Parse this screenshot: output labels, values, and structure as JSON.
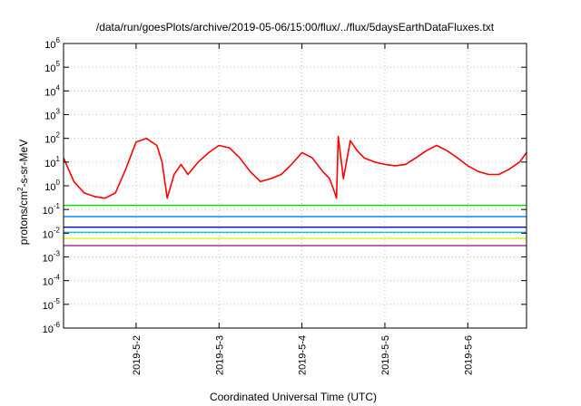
{
  "chart_data": {
    "type": "line",
    "title": "/data/run/goesPlots/archive/2019-05-06/15:00/flux/../flux/5daysEarthDataFluxes.txt",
    "xlabel": "Coordinated Universal Time (UTC)",
    "ylabel": {
      "prefix": "protons/cm",
      "superscript": "2",
      "suffix": "-s-sr-MeV"
    },
    "yscale": "log",
    "ylim": [
      1e-06,
      1000000.0
    ],
    "yticks": [
      {
        "base": "10",
        "exp": "-6",
        "value": 1e-06
      },
      {
        "base": "10",
        "exp": "-5",
        "value": 1e-05
      },
      {
        "base": "10",
        "exp": "-4",
        "value": 0.0001
      },
      {
        "base": "10",
        "exp": "-3",
        "value": 0.001
      },
      {
        "base": "10",
        "exp": "-2",
        "value": 0.01
      },
      {
        "base": "10",
        "exp": "-1",
        "value": 0.1
      },
      {
        "base": "10",
        "exp": "0",
        "value": 1
      },
      {
        "base": "10",
        "exp": "1",
        "value": 10
      },
      {
        "base": "10",
        "exp": "2",
        "value": 100
      },
      {
        "base": "10",
        "exp": "3",
        "value": 1000
      },
      {
        "base": "10",
        "exp": "4",
        "value": 10000
      },
      {
        "base": "10",
        "exp": "5",
        "value": 100000
      },
      {
        "base": "10",
        "exp": "6",
        "value": 1000000
      }
    ],
    "xlim": [
      "2019-05-01T03:00",
      "2019-05-06T17:00"
    ],
    "xticks": [
      {
        "label": "2019-5-2",
        "value": "2019-05-02T00:00"
      },
      {
        "label": "2019-5-3",
        "value": "2019-05-03T00:00"
      },
      {
        "label": "2019-5-4",
        "value": "2019-05-04T00:00"
      },
      {
        "label": "2019-5-5",
        "value": "2019-05-05T00:00"
      },
      {
        "label": "2019-5-6",
        "value": "2019-05-06T00:00"
      }
    ],
    "grid": true,
    "series": [
      {
        "color": "#ff0000",
        "x": [
          "2019-05-01T03:00",
          "2019-05-01T06:00",
          "2019-05-01T09:00",
          "2019-05-01T12:00",
          "2019-05-01T15:00",
          "2019-05-01T18:00",
          "2019-05-01T21:00",
          "2019-05-02T00:00",
          "2019-05-02T03:00",
          "2019-05-02T06:00",
          "2019-05-02T07:30",
          "2019-05-02T09:00",
          "2019-05-02T11:00",
          "2019-05-02T13:00",
          "2019-05-02T15:00",
          "2019-05-02T18:00",
          "2019-05-02T21:00",
          "2019-05-03T00:00",
          "2019-05-03T03:00",
          "2019-05-03T06:00",
          "2019-05-03T09:00",
          "2019-05-03T12:00",
          "2019-05-03T15:00",
          "2019-05-03T18:00",
          "2019-05-03T21:00",
          "2019-05-04T00:00",
          "2019-05-04T03:00",
          "2019-05-04T06:00",
          "2019-05-04T08:00",
          "2019-05-04T09:30",
          "2019-05-04T10:00",
          "2019-05-04T10:30",
          "2019-05-04T12:00",
          "2019-05-04T14:00",
          "2019-05-04T16:00",
          "2019-05-04T18:00",
          "2019-05-04T21:00",
          "2019-05-05T00:00",
          "2019-05-05T03:00",
          "2019-05-05T06:00",
          "2019-05-05T09:00",
          "2019-05-05T12:00",
          "2019-05-05T15:00",
          "2019-05-05T18:00",
          "2019-05-05T21:00",
          "2019-05-06T00:00",
          "2019-05-06T03:00",
          "2019-05-06T06:00",
          "2019-05-06T09:00",
          "2019-05-06T12:00",
          "2019-05-06T15:00",
          "2019-05-06T17:00"
        ],
        "values": [
          15,
          1.5,
          0.5,
          0.35,
          0.3,
          0.5,
          5,
          70,
          100,
          50,
          10,
          0.3,
          3,
          8,
          3,
          10,
          25,
          50,
          40,
          15,
          4,
          1.5,
          2,
          3,
          8,
          25,
          15,
          4,
          2,
          0.5,
          0.3,
          120,
          2,
          80,
          30,
          15,
          10,
          8,
          7,
          8,
          15,
          30,
          50,
          30,
          15,
          7,
          4,
          3,
          3,
          5,
          10,
          25
        ]
      },
      {
        "color": "#00dd00",
        "x": [
          "2019-05-01T03:00",
          "2019-05-06T17:00"
        ],
        "values": [
          0.15,
          0.15
        ]
      },
      {
        "color": "#0090ff",
        "x": [
          "2019-05-01T03:00",
          "2019-05-06T17:00"
        ],
        "values": [
          0.05,
          0.05
        ]
      },
      {
        "color": "#0000dd",
        "x": [
          "2019-05-01T03:00",
          "2019-05-06T17:00"
        ],
        "values": [
          0.018,
          0.018
        ]
      },
      {
        "color": "#00cccc",
        "x": [
          "2019-05-01T03:00",
          "2019-05-06T17:00"
        ],
        "values": [
          0.011,
          0.011
        ]
      },
      {
        "color": "#eeee00",
        "x": [
          "2019-05-01T03:00",
          "2019-05-06T17:00"
        ],
        "values": [
          0.006,
          0.006
        ]
      },
      {
        "color": "#aa3388",
        "x": [
          "2019-05-01T03:00",
          "2019-05-06T17:00"
        ],
        "values": [
          0.003,
          0.003
        ]
      }
    ]
  }
}
